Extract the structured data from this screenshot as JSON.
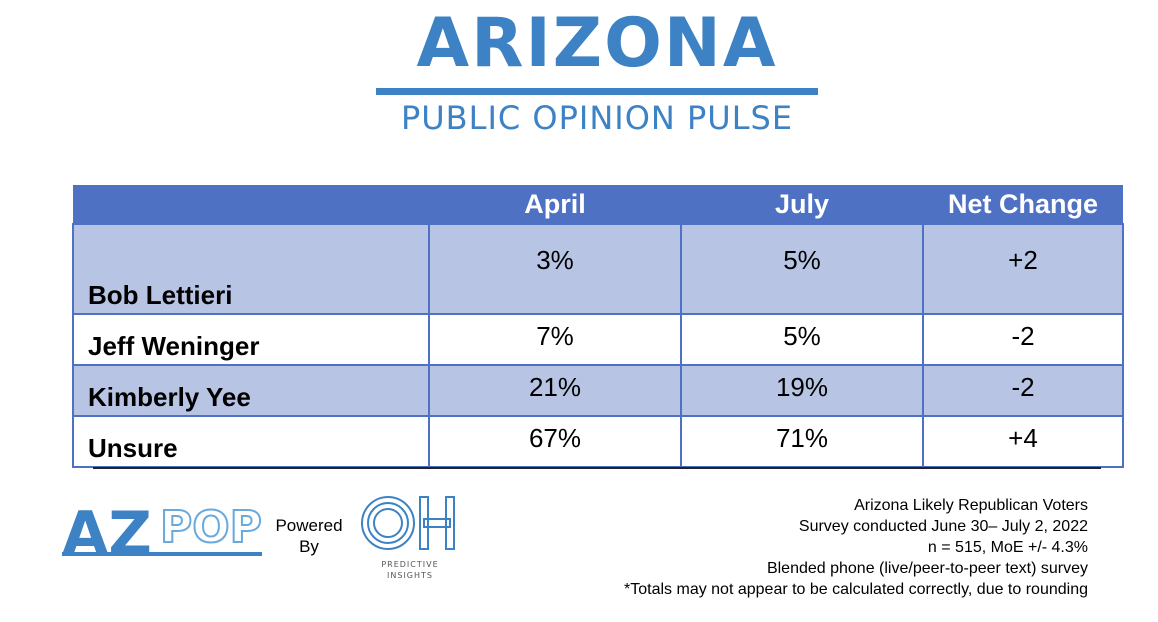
{
  "header": {
    "title": "Arizona",
    "subtitle": "PUBLIC OPINION PULSE"
  },
  "chart_data": {
    "type": "table",
    "columns": [
      "",
      "April",
      "July",
      "Net Change"
    ],
    "rows": [
      {
        "name": "Bob Lettieri",
        "april": "3%",
        "july": "5%",
        "change": "+2"
      },
      {
        "name": "Jeff Weninger",
        "april": "7%",
        "july": "5%",
        "change": "-2"
      },
      {
        "name": "Kimberly Yee",
        "april": "21%",
        "july": "19%",
        "change": "-2"
      },
      {
        "name": "Unsure",
        "april": "67%",
        "july": "71%",
        "change": "+4"
      }
    ]
  },
  "footer": {
    "powered_line1": "Powered",
    "powered_line2": "By",
    "logo_az": "AZ",
    "logo_pop": "POP",
    "logo_oh": "OH",
    "logo_oh_line1": "PREDICTIVE",
    "logo_oh_line2": "INSIGHTS",
    "notes": [
      "Arizona Likely Republican Voters",
      "Survey conducted June 30– July 2, 2022",
      "n = 515, MoE +/- 4.3%",
      "Blended phone (live/peer-to-peer text) survey",
      "*Totals may not appear to be calculated correctly, due to rounding"
    ]
  },
  "colors": {
    "brand_blue": "#3d82c4",
    "header_blue": "#4f71c4",
    "row_shade": "#b8c4e4",
    "logo_light_blue": "#69a9dc"
  }
}
